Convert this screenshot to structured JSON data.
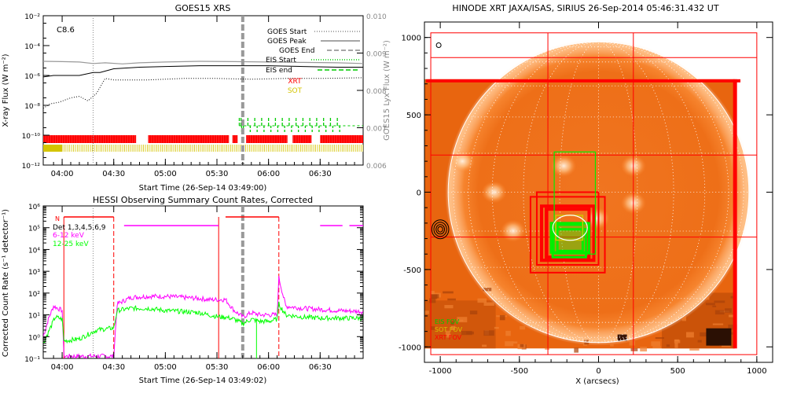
{
  "goes": {
    "title": "GOES15 XRS",
    "class_label": "C8.6",
    "ylabel": "X-ray Flux (W m⁻²)",
    "y2label": "GOES15 Lyx Flux (W m⁻²)",
    "xlabel": "Start Time (26-Sep-14 03:49:00)",
    "legend": [
      {
        "label": "GOES Start",
        "color": "#888888",
        "style": "dotted"
      },
      {
        "label": "GOES Peak",
        "color": "#888888",
        "style": "solid"
      },
      {
        "label": "GOES End",
        "color": "#888888",
        "style": "dashed"
      },
      {
        "label": "EIS Start",
        "color": "#00cc00",
        "style": "dotted"
      },
      {
        "label": "EIS end",
        "color": "#00cc00",
        "style": "dashed"
      },
      {
        "label": "XRT",
        "color": "#ff0000",
        "style": "text"
      },
      {
        "label": "SOT",
        "color": "#d4c400",
        "style": "text"
      }
    ]
  },
  "hessi": {
    "title": "HESSI Observing Summary Count Rates, Corrected",
    "ylabel": "Corrected Count Rate (s⁻¹ detector⁻¹)",
    "xlabel": "Start Time (26-Sep-14 03:49:02)",
    "legend": [
      {
        "label": "N",
        "color": "#ff0000"
      },
      {
        "label": "Det 1,3,4,5,6,9",
        "color": "#000000"
      },
      {
        "label": "6-12 keV",
        "color": "#ff00ff"
      },
      {
        "label": "12-25 keV",
        "color": "#00ff00"
      }
    ]
  },
  "xrt": {
    "title": "HINODE XRT JAXA/ISAS, SIRIUS 26-Sep-2014 05:46:31.432 UT",
    "xlabel": "X (arcsecs)",
    "legend": [
      {
        "label": "EIS FOV",
        "color": "#00cc00"
      },
      {
        "label": "SOT FOV",
        "color": "#d4c400"
      },
      {
        "label": "XRT FOV",
        "color": "#ff0000"
      }
    ]
  },
  "chart_data": [
    {
      "type": "line",
      "title": "GOES15 XRS",
      "xlabel": "Start Time (26-Sep-14 03:49:00)",
      "ylabel": "X-ray Flux (W m-2)",
      "y2label": "GOES15 Lyx Flux (W m-2)",
      "x_range_min": [
        229,
        415
      ],
      "xticks": [
        {
          "t": 240,
          "label": "04:00"
        },
        {
          "t": 270,
          "label": "04:30"
        },
        {
          "t": 300,
          "label": "05:00"
        },
        {
          "t": 330,
          "label": "05:30"
        },
        {
          "t": 360,
          "label": "06:00"
        },
        {
          "t": 390,
          "label": "06:30"
        }
      ],
      "ylog": true,
      "ylim_exp": [
        -12,
        -2
      ],
      "yticks": [
        {
          "e": -12,
          "label": "10⁻¹²"
        },
        {
          "e": -10,
          "label": "10⁻¹⁰"
        },
        {
          "e": -8,
          "label": "10⁻⁸"
        },
        {
          "e": -6,
          "label": "10⁻⁶"
        },
        {
          "e": -4,
          "label": "10⁻⁴"
        },
        {
          "e": -2,
          "label": "10⁻²"
        }
      ],
      "y2lim": [
        0.006,
        0.01
      ],
      "y2ticks": [
        "0.006",
        "0.007",
        "0.008",
        "0.009",
        "0.010"
      ],
      "series": [
        {
          "name": "long (black)",
          "x": [
            229,
            235,
            240,
            250,
            258,
            262,
            270,
            285,
            300,
            320,
            340,
            360,
            380,
            400,
            415
          ],
          "log_y": [
            -6.1,
            -6.0,
            -6.0,
            -6.0,
            -5.8,
            -5.8,
            -5.55,
            -5.45,
            -5.4,
            -5.35,
            -5.35,
            -5.35,
            -5.4,
            -5.45,
            -5.45
          ]
        },
        {
          "name": "short (dotted)",
          "x": [
            229,
            233,
            238,
            245,
            250,
            255,
            260,
            265,
            270,
            290,
            310,
            330,
            350,
            370,
            390,
            415
          ],
          "log_y": [
            -8.2,
            -7.9,
            -7.8,
            -7.5,
            -7.4,
            -7.7,
            -7.2,
            -6.2,
            -6.3,
            -6.3,
            -6.2,
            -6.2,
            -6.25,
            -6.2,
            -6.2,
            -6.15
          ]
        },
        {
          "name": "Lyx (gray)",
          "x": [
            229,
            240,
            250,
            258,
            265,
            275,
            285,
            300,
            320,
            340,
            360,
            380,
            400,
            415
          ],
          "y2": [
            0.00878,
            0.00877,
            0.00876,
            0.00872,
            0.00874,
            0.00871,
            0.00874,
            0.00876,
            0.00878,
            0.00877,
            0.00876,
            0.00875,
            0.00874,
            0.00872
          ]
        }
      ],
      "vlines": [
        {
          "t": 258,
          "style": "dotted"
        },
        {
          "t": 345,
          "style": "dashed"
        }
      ],
      "xrt_bars": [
        [
          229,
          283
        ],
        [
          290,
          337
        ],
        [
          339,
          342
        ],
        [
          347,
          371
        ],
        [
          374,
          385
        ],
        [
          390,
          415
        ]
      ],
      "sot_bars": [
        [
          229,
          240
        ],
        [
          240,
          415
        ]
      ],
      "eis_tick_times": [
        343,
        344,
        348,
        352,
        356,
        360,
        364,
        368,
        372,
        376,
        380,
        384,
        388,
        392,
        396,
        400
      ]
    },
    {
      "type": "line",
      "title": "HESSI Observing Summary Count Rates, Corrected",
      "xlabel": "Start Time (26-Sep-14 03:49:02)",
      "ylabel": "Corrected Count Rate (s-1 detector-1)",
      "x_range_min": [
        229,
        415
      ],
      "xticks": [
        {
          "t": 240,
          "label": "04:00"
        },
        {
          "t": 270,
          "label": "04:30"
        },
        {
          "t": 300,
          "label": "05:00"
        },
        {
          "t": 330,
          "label": "05:30"
        },
        {
          "t": 360,
          "label": "06:00"
        },
        {
          "t": 390,
          "label": "06:30"
        }
      ],
      "ylog": true,
      "ylim_exp": [
        -1,
        6
      ],
      "yticks": [
        {
          "e": -1,
          "label": "10⁻¹"
        },
        {
          "e": 0,
          "label": "10⁰"
        },
        {
          "e": 1,
          "label": "10¹"
        },
        {
          "e": 2,
          "label": "10²"
        },
        {
          "e": 3,
          "label": "10³"
        },
        {
          "e": 4,
          "label": "10⁴"
        },
        {
          "e": 5,
          "label": "10⁵"
        },
        {
          "e": 6,
          "label": "10⁶"
        }
      ],
      "series": [
        {
          "name": "6-12 keV",
          "color": "#ff00ff",
          "x": [
            229,
            232,
            235,
            240,
            241,
            270,
            272,
            280,
            290,
            300,
            310,
            320,
            325,
            332,
            335,
            340,
            345,
            350,
            355,
            360,
            365,
            366,
            370,
            380,
            390,
            400,
            415
          ],
          "log_y": [
            0.0,
            0.8,
            1.4,
            1.2,
            -0.9,
            -0.9,
            1.5,
            1.8,
            1.85,
            1.85,
            1.8,
            1.75,
            1.7,
            1.7,
            1.7,
            1.2,
            0.9,
            1.1,
            1.0,
            1.0,
            1.0,
            2.7,
            1.4,
            1.3,
            1.25,
            1.2,
            1.15
          ]
        },
        {
          "name": "12-25 keV",
          "color": "#00ff00",
          "x": [
            229,
            232,
            236,
            240,
            241,
            250,
            260,
            270,
            272,
            280,
            290,
            300,
            310,
            320,
            325,
            332,
            335,
            340,
            345,
            350,
            355,
            360,
            365,
            366,
            370,
            380,
            390,
            400,
            415
          ],
          "log_y": [
            -0.3,
            0.2,
            0.9,
            0.8,
            -0.2,
            -0.1,
            0.3,
            0.4,
            1.2,
            1.3,
            1.3,
            1.2,
            1.15,
            1.1,
            1.0,
            0.9,
            0.9,
            0.8,
            0.6,
            0.8,
            0.7,
            0.7,
            0.8,
            1.5,
            1.0,
            0.9,
            0.85,
            0.85,
            0.85
          ]
        }
      ],
      "attenuator_segments": [
        [
          241,
          270
        ],
        [
          335,
          366
        ]
      ],
      "saa_top": [
        [
          276,
          331
        ],
        [
          390,
          403
        ],
        [
          407,
          415
        ]
      ],
      "solid_vlines": [
        241,
        331
      ],
      "dashed_vlines": [
        270,
        366
      ],
      "gray_vline": 345,
      "green_dip": [
        353,
        354
      ]
    },
    {
      "type": "heatmap",
      "title": "HINODE XRT JAXA/ISAS, SIRIUS 26-Sep-2014 05:46:31.432 UT",
      "xlabel": "X (arcsecs)",
      "xlim": [
        -1100,
        1100
      ],
      "ylim": [
        -1100,
        1100
      ],
      "xticks": [
        -1000,
        -500,
        0,
        500,
        1000
      ],
      "yticks": [
        1000,
        500,
        0,
        -500,
        -1000
      ],
      "image_extent": {
        "x": [
          -1100,
          860
        ],
        "y": [
          -1010,
          730
        ]
      },
      "solar_radius": 950,
      "grid_step_deg": 15,
      "xrt_outer_fov": {
        "x": [
          -1060,
          1000
        ],
        "y": [
          -1050,
          1030
        ]
      },
      "xrt_grid_x": [
        -320,
        220
      ],
      "xrt_grid_y": [
        870,
        240,
        -290
      ],
      "xrt_boxes": [
        {
          "x": [
            -430,
            40
          ],
          "y": [
            -520,
            -30
          ]
        },
        {
          "x": [
            -390,
            0
          ],
          "y": [
            -470,
            0
          ]
        },
        {
          "x": [
            -360,
            -30
          ],
          "y": [
            -440,
            -90
          ]
        },
        {
          "x": [
            -330,
            -60
          ],
          "y": [
            -420,
            -110
          ]
        }
      ],
      "eis_boxes": [
        {
          "x": [
            -280,
            -20
          ],
          "y": [
            -400,
            260
          ]
        },
        {
          "x": [
            -300,
            -60
          ],
          "y": [
            -390,
            -200
          ]
        },
        {
          "x": [
            -290,
            -80
          ],
          "y": [
            -420,
            -240
          ]
        },
        {
          "x": [
            -260,
            -100
          ],
          "y": [
            -380,
            -210
          ]
        }
      ],
      "sot_boxes": [
        {
          "x": [
            -270,
            -100
          ],
          "y": [
            -310,
            -150
          ]
        }
      ],
      "contour_center": [
        -1000,
        -240
      ],
      "small_circle": [
        -1010,
        950
      ],
      "bright_regions": [
        [
          -860,
          200
        ],
        [
          -660,
          0
        ],
        [
          -540,
          -250
        ],
        [
          -220,
          170
        ],
        [
          220,
          170
        ],
        [
          220,
          -70
        ],
        [
          -10,
          -170
        ]
      ]
    }
  ]
}
